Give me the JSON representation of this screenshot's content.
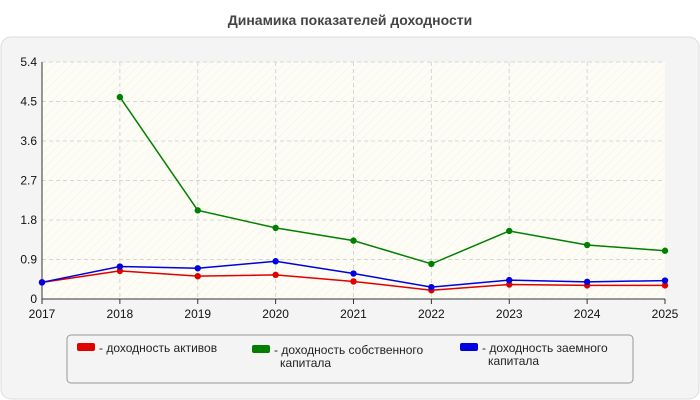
{
  "chart_data": {
    "type": "line",
    "title": "Динамика показателей доходности",
    "xlabel": "",
    "ylabel": "",
    "categories": [
      "2017",
      "2018",
      "2019",
      "2020",
      "2021",
      "2022",
      "2023",
      "2024",
      "2025"
    ],
    "ylim": [
      0,
      5.4
    ],
    "yticks": [
      "0",
      "0.9",
      "1.8",
      "2.7",
      "3.6",
      "4.5",
      "5.4"
    ],
    "grid": true,
    "legend_position": "bottom",
    "series": [
      {
        "name": "- доходность активов",
        "color": "#e00000",
        "values": [
          0.38,
          0.64,
          0.52,
          0.55,
          0.4,
          0.2,
          0.33,
          0.31,
          0.31
        ]
      },
      {
        "name": "- доходность собственного капитала",
        "color": "#008000",
        "values": [
          null,
          4.6,
          2.02,
          1.62,
          1.33,
          0.8,
          1.55,
          1.23,
          1.1
        ]
      },
      {
        "name": "- доходность заемного капитала",
        "color": "#0000e0",
        "values": [
          0.38,
          0.74,
          0.7,
          0.86,
          0.58,
          0.27,
          0.43,
          0.39,
          0.42
        ]
      }
    ]
  }
}
